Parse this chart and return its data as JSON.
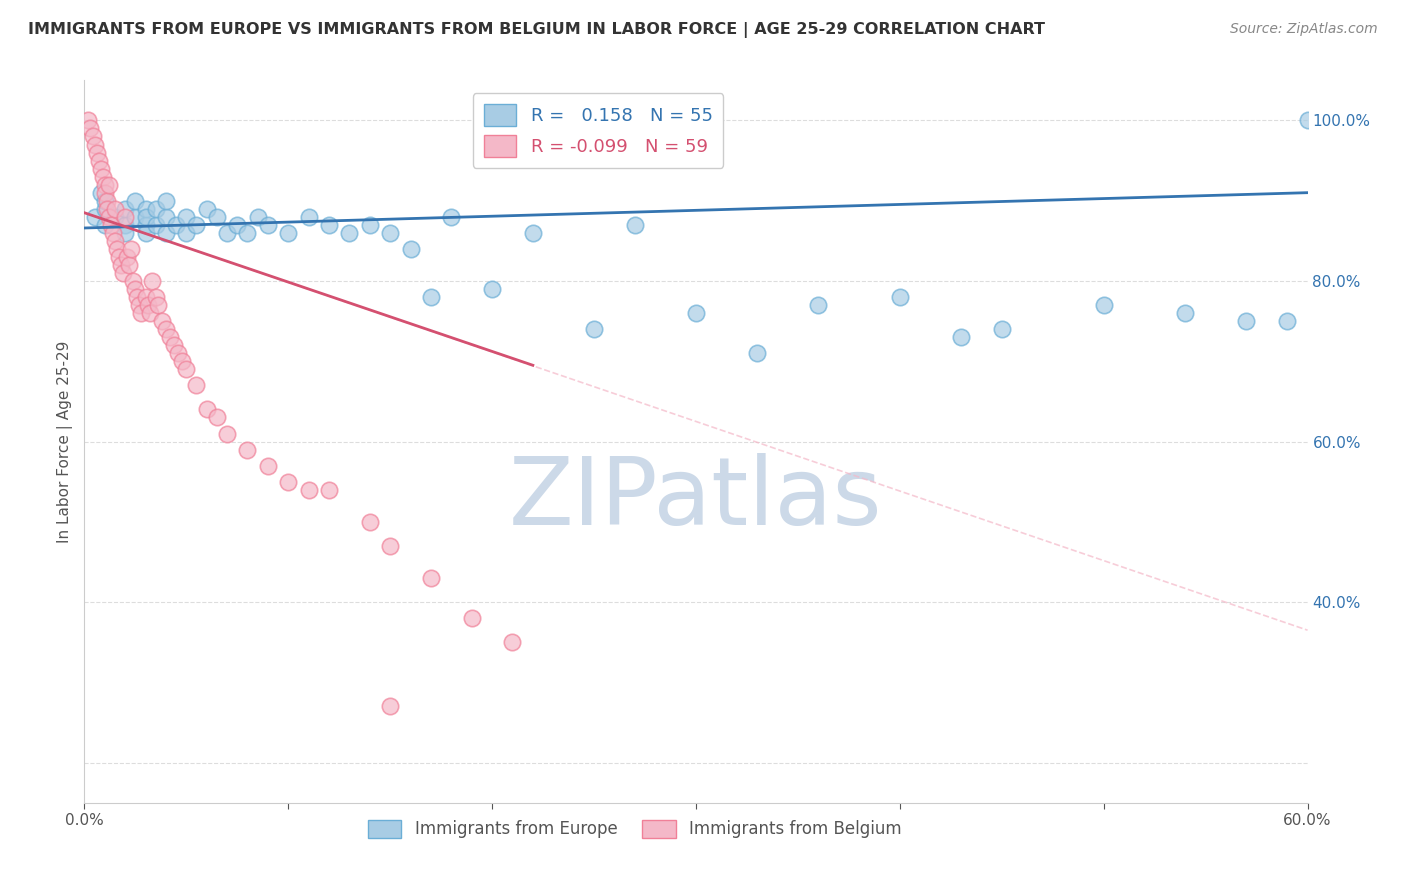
{
  "title": "IMMIGRANTS FROM EUROPE VS IMMIGRANTS FROM BELGIUM IN LABOR FORCE | AGE 25-29 CORRELATION CHART",
  "source": "Source: ZipAtlas.com",
  "ylabel": "In Labor Force | Age 25-29",
  "xlim": [
    0.0,
    0.6
  ],
  "ylim": [
    0.15,
    1.05
  ],
  "R_blue": 0.158,
  "N_blue": 55,
  "R_pink": -0.099,
  "N_pink": 59,
  "blue_color": "#a8cce4",
  "pink_color": "#f4b8c8",
  "blue_edge_color": "#6baed6",
  "pink_edge_color": "#f08098",
  "blue_line_color": "#3474b0",
  "pink_line_color": "#d45070",
  "dashed_line_color": "#f4b8c8",
  "legend_blue_label": "Immigrants from Europe",
  "legend_pink_label": "Immigrants from Belgium",
  "blue_scatter_x": [
    0.005,
    0.008,
    0.01,
    0.01,
    0.01,
    0.015,
    0.02,
    0.02,
    0.02,
    0.025,
    0.025,
    0.03,
    0.03,
    0.03,
    0.03,
    0.035,
    0.035,
    0.04,
    0.04,
    0.04,
    0.045,
    0.05,
    0.05,
    0.055,
    0.06,
    0.065,
    0.07,
    0.075,
    0.08,
    0.085,
    0.09,
    0.1,
    0.11,
    0.12,
    0.13,
    0.14,
    0.15,
    0.16,
    0.17,
    0.18,
    0.2,
    0.22,
    0.25,
    0.27,
    0.3,
    0.33,
    0.36,
    0.4,
    0.43,
    0.45,
    0.5,
    0.54,
    0.57,
    0.59,
    0.6
  ],
  "blue_scatter_y": [
    0.88,
    0.91,
    0.89,
    0.87,
    0.9,
    0.88,
    0.87,
    0.89,
    0.86,
    0.88,
    0.9,
    0.87,
    0.89,
    0.86,
    0.88,
    0.87,
    0.89,
    0.86,
    0.88,
    0.9,
    0.87,
    0.86,
    0.88,
    0.87,
    0.89,
    0.88,
    0.86,
    0.87,
    0.86,
    0.88,
    0.87,
    0.86,
    0.88,
    0.87,
    0.86,
    0.87,
    0.86,
    0.84,
    0.78,
    0.88,
    0.79,
    0.86,
    0.74,
    0.87,
    0.76,
    0.71,
    0.77,
    0.78,
    0.73,
    0.74,
    0.77,
    0.76,
    0.75,
    0.75,
    1.0
  ],
  "pink_scatter_x": [
    0.002,
    0.003,
    0.004,
    0.005,
    0.006,
    0.007,
    0.008,
    0.009,
    0.01,
    0.01,
    0.011,
    0.011,
    0.012,
    0.012,
    0.013,
    0.014,
    0.015,
    0.015,
    0.016,
    0.017,
    0.018,
    0.019,
    0.02,
    0.021,
    0.022,
    0.023,
    0.024,
    0.025,
    0.026,
    0.027,
    0.028,
    0.03,
    0.031,
    0.032,
    0.033,
    0.035,
    0.036,
    0.038,
    0.04,
    0.042,
    0.044,
    0.046,
    0.048,
    0.05,
    0.055,
    0.06,
    0.065,
    0.07,
    0.08,
    0.09,
    0.1,
    0.11,
    0.12,
    0.14,
    0.15,
    0.17,
    0.19,
    0.21,
    0.15
  ],
  "pink_scatter_y": [
    1.0,
    0.99,
    0.98,
    0.97,
    0.96,
    0.95,
    0.94,
    0.93,
    0.92,
    0.91,
    0.9,
    0.89,
    0.92,
    0.88,
    0.87,
    0.86,
    0.89,
    0.85,
    0.84,
    0.83,
    0.82,
    0.81,
    0.88,
    0.83,
    0.82,
    0.84,
    0.8,
    0.79,
    0.78,
    0.77,
    0.76,
    0.78,
    0.77,
    0.76,
    0.8,
    0.78,
    0.77,
    0.75,
    0.74,
    0.73,
    0.72,
    0.71,
    0.7,
    0.69,
    0.67,
    0.64,
    0.63,
    0.61,
    0.59,
    0.57,
    0.55,
    0.54,
    0.54,
    0.5,
    0.47,
    0.43,
    0.38,
    0.35,
    0.27
  ],
  "blue_trend_x": [
    0.0,
    0.6
  ],
  "blue_trend_y": [
    0.866,
    0.91
  ],
  "pink_trend_x": [
    0.0,
    0.22
  ],
  "pink_trend_y": [
    0.885,
    0.695
  ],
  "dashed_trend_x": [
    0.0,
    0.6
  ],
  "dashed_trend_y": [
    0.885,
    0.365
  ],
  "background_color": "#ffffff",
  "watermark_text": "ZIPatlas",
  "watermark_color": "#ccd9e8",
  "grid_color": "#dddddd",
  "spine_color": "#cccccc"
}
